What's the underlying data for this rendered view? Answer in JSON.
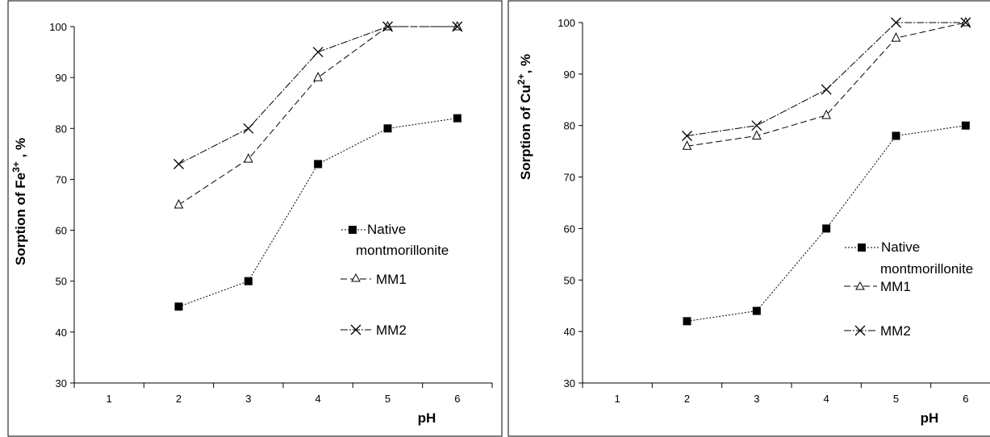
{
  "chart_data": [
    {
      "type": "line",
      "ylabel_prefix": "Sorption of Fe",
      "ylabel_sup": "3+",
      "ylabel_suffix": " , %",
      "xlabel": "pH",
      "categories": [
        "1",
        "2",
        "3",
        "4",
        "5",
        "6"
      ],
      "ylim": [
        30,
        100
      ],
      "yticks": [
        "30",
        "40",
        "50",
        "60",
        "70",
        "80",
        "90",
        "100"
      ],
      "grid": false,
      "legend_position": "right",
      "series": [
        {
          "name_line1": "Native",
          "name_line2": "montmorillonite",
          "marker": "square",
          "x": [
            2,
            3,
            4,
            5,
            6
          ],
          "values": [
            45,
            50,
            73,
            80,
            82
          ]
        },
        {
          "name": "MM1",
          "marker": "triangle",
          "x": [
            2,
            3,
            4,
            5,
            6
          ],
          "values": [
            65,
            74,
            90,
            100,
            100
          ]
        },
        {
          "name": "MM2",
          "marker": "x",
          "x": [
            2,
            3,
            4,
            5,
            6
          ],
          "values": [
            73,
            80,
            95,
            100,
            100
          ]
        }
      ]
    },
    {
      "type": "line",
      "ylabel_prefix": "Sorption of Cu",
      "ylabel_sup": "2+",
      "ylabel_suffix": ", %",
      "xlabel": "pH",
      "categories": [
        "1",
        "2",
        "3",
        "4",
        "5",
        "6"
      ],
      "ylim": [
        30,
        100
      ],
      "yticks": [
        "30",
        "40",
        "50",
        "60",
        "70",
        "80",
        "90",
        "100"
      ],
      "grid": false,
      "legend_position": "right",
      "series": [
        {
          "name_line1": "Native",
          "name_line2": "montmorillonite",
          "marker": "square",
          "x": [
            2,
            3,
            4,
            5,
            6
          ],
          "values": [
            42,
            44,
            60,
            78,
            80
          ]
        },
        {
          "name": "MM1",
          "marker": "triangle",
          "x": [
            2,
            3,
            4,
            5,
            6
          ],
          "values": [
            76,
            78,
            82,
            97,
            100
          ]
        },
        {
          "name": "MM2",
          "marker": "x",
          "x": [
            2,
            3,
            4,
            5,
            6
          ],
          "values": [
            78,
            80,
            87,
            100,
            100
          ]
        }
      ]
    }
  ]
}
